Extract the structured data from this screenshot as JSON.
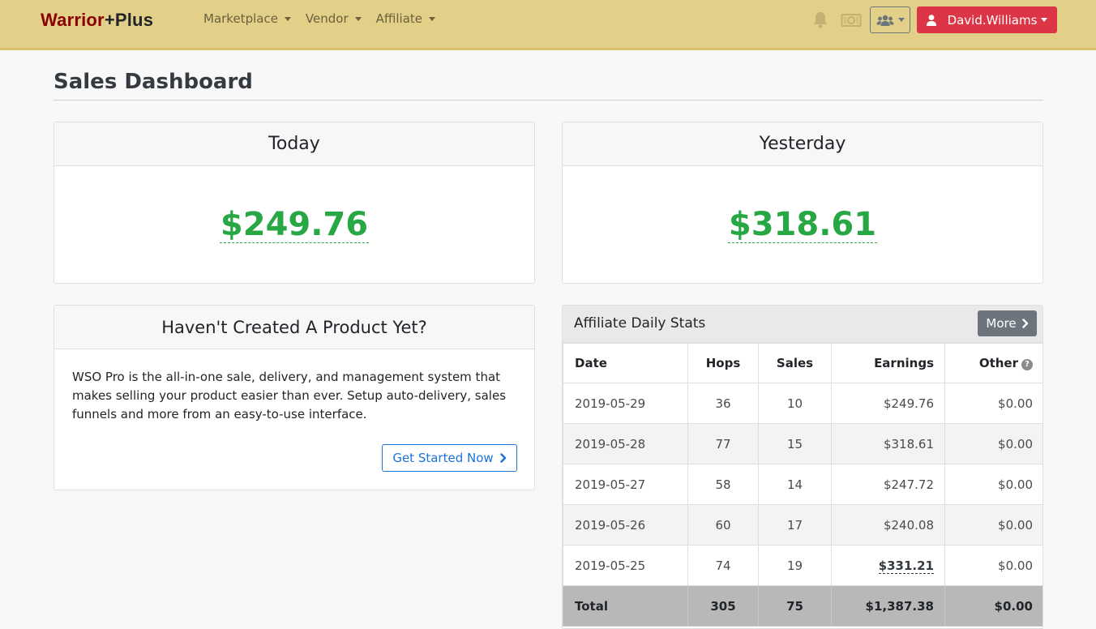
{
  "brand": {
    "part1": "Warrior",
    "part2": "+Plus"
  },
  "nav": {
    "items": [
      {
        "label": "Marketplace"
      },
      {
        "label": "Vendor"
      },
      {
        "label": "Affiliate"
      }
    ],
    "user_name": "David.Williams"
  },
  "page": {
    "title": "Sales Dashboard"
  },
  "stats": {
    "today_label": "Today",
    "today_amount": "$249.76",
    "yesterday_label": "Yesterday",
    "yesterday_amount": "$318.61"
  },
  "product_promo": {
    "heading": "Haven't Created A Product Yet?",
    "text": "WSO Pro is the all-in-one sale, delivery, and management system that makes selling your product easier than ever. Setup auto-delivery, sales funnels and more from an easy-to-use interface.",
    "button_label": "Get Started Now"
  },
  "affiliate_stats": {
    "title": "Affiliate Daily Stats",
    "more_label": "More",
    "columns": [
      "Date",
      "Hops",
      "Sales",
      "Earnings",
      "Other"
    ],
    "rows": [
      {
        "date": "2019-05-29",
        "hops": "36",
        "sales": "10",
        "earnings": "$249.76",
        "other": "$0.00"
      },
      {
        "date": "2019-05-28",
        "hops": "77",
        "sales": "15",
        "earnings": "$318.61",
        "other": "$0.00"
      },
      {
        "date": "2019-05-27",
        "hops": "58",
        "sales": "14",
        "earnings": "$247.72",
        "other": "$0.00"
      },
      {
        "date": "2019-05-26",
        "hops": "60",
        "sales": "17",
        "earnings": "$240.08",
        "other": "$0.00"
      },
      {
        "date": "2019-05-25",
        "hops": "74",
        "sales": "19",
        "earnings": "$331.21",
        "other": "$0.00"
      }
    ],
    "total": {
      "label": "Total",
      "hops": "305",
      "sales": "75",
      "earnings": "$1,387.38",
      "other": "$0.00"
    }
  },
  "colors": {
    "navbar": "#e2cf88",
    "brand_red": "#8b0000",
    "user_button": "#dc3545",
    "amount_green": "#28a745",
    "link_blue": "#1a73d9",
    "more_button": "#6c757d"
  }
}
